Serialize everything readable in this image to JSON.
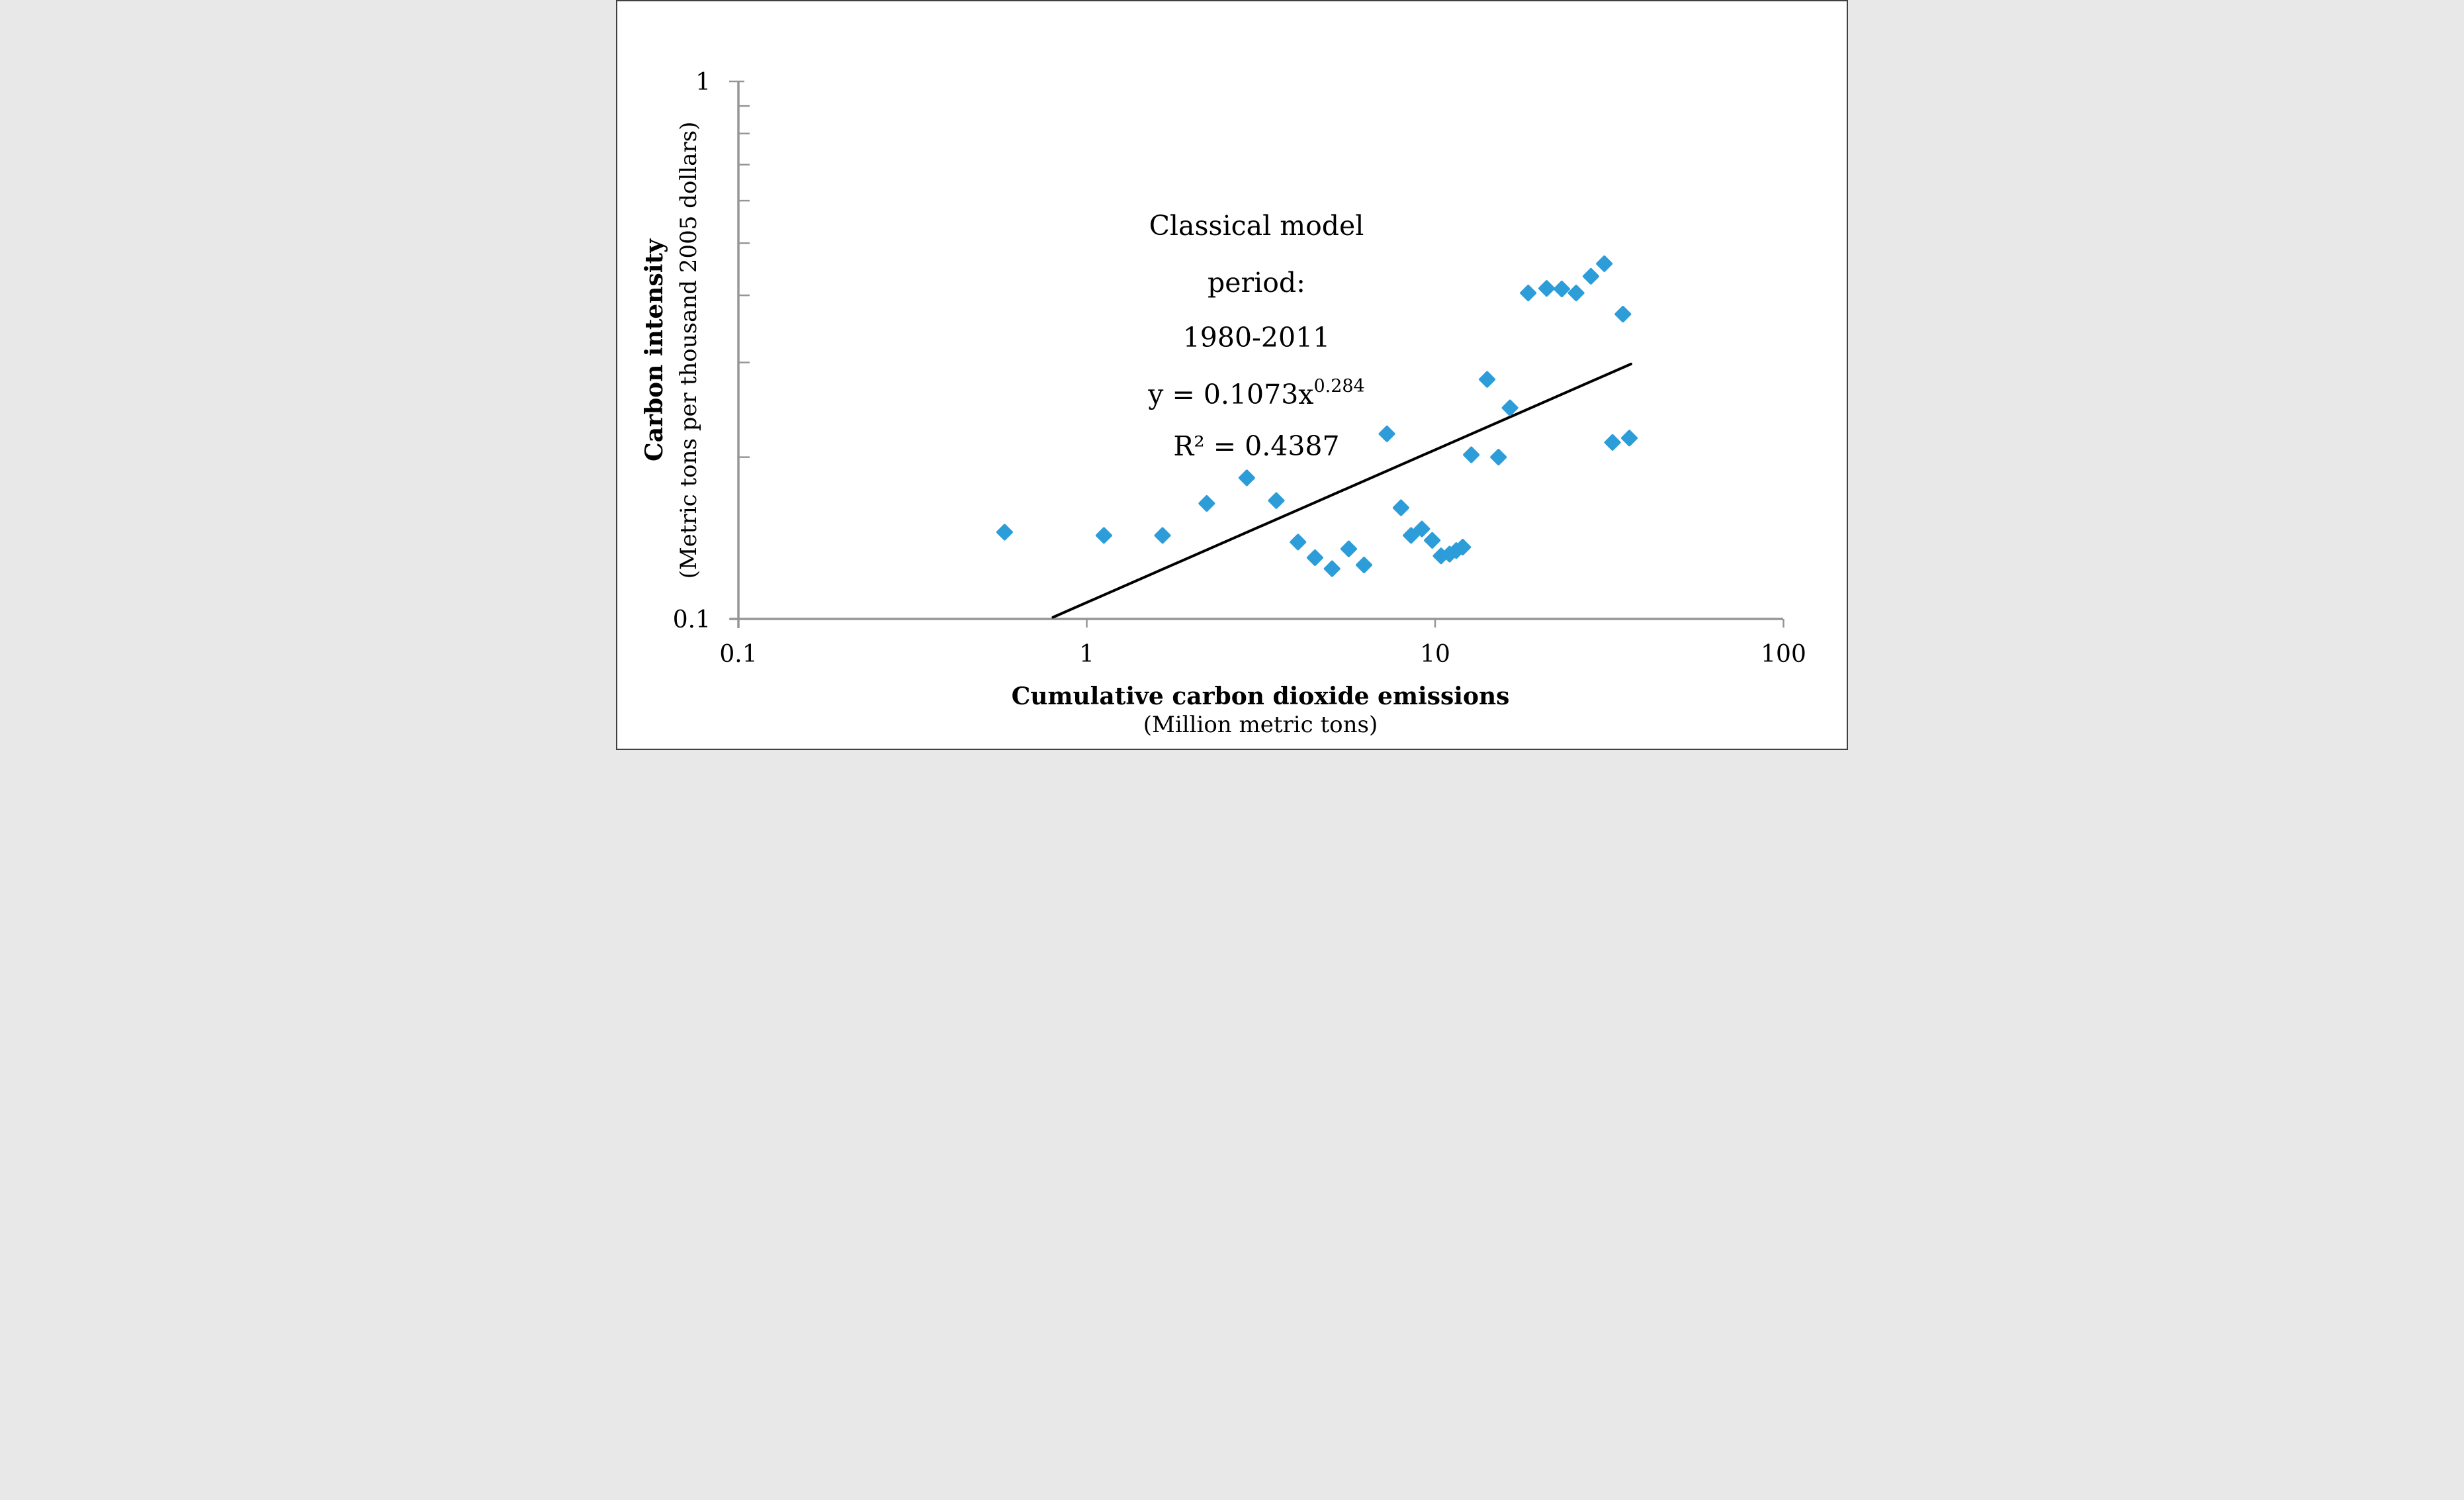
{
  "figure": {
    "background_color": "#ffffff",
    "border_color": "#404040"
  },
  "chart_data": {
    "type": "scatter",
    "title": "",
    "xlabel": "Cumulative carbon dioxide emissions",
    "xlabel_sub": "(Million metric tons)",
    "ylabel": "Carbon intensity",
    "ylabel_sub": "(Metric tons per thousand 2005 dollars)",
    "x_scale": "log",
    "y_scale": "log",
    "xlim": [
      0.1,
      100
    ],
    "ylim": [
      0.1,
      1
    ],
    "grid": false,
    "legend": false,
    "x_ticks": [
      0.1,
      1,
      10,
      100
    ],
    "x_tick_labels": [
      "0.1",
      "1",
      "10",
      "100"
    ],
    "y_ticks": [
      1,
      0.1
    ],
    "y_tick_labels": [
      "1",
      "0.1"
    ],
    "y_minor_ticks": [
      0.9,
      0.8,
      0.7,
      0.6,
      0.5,
      0.4,
      0.3,
      0.2
    ],
    "axis_color": "#969696",
    "marker": {
      "shape": "diamond",
      "color": "#2D9DD9"
    },
    "annotation": {
      "line1": "Classical model",
      "line2": "period:",
      "line3": "1980-2011",
      "line4_base": "y = 0.1073x",
      "line4_sup": "0.284",
      "line5": "R² = 0.4387"
    },
    "trendline": {
      "color": "#000000",
      "coefficient": 0.1073,
      "exponent": 0.284,
      "r_squared": 0.4387,
      "x_start": 0.8,
      "x_end": 36.5
    },
    "points": [
      [
        0.581,
        0.145
      ],
      [
        1.12,
        0.143
      ],
      [
        1.65,
        0.143
      ],
      [
        2.21,
        0.164
      ],
      [
        2.88,
        0.183
      ],
      [
        3.5,
        0.166
      ],
      [
        4.04,
        0.139
      ],
      [
        4.52,
        0.13
      ],
      [
        5.06,
        0.124
      ],
      [
        5.65,
        0.135
      ],
      [
        6.25,
        0.126
      ],
      [
        7.27,
        0.221
      ],
      [
        7.98,
        0.161
      ],
      [
        8.53,
        0.143
      ],
      [
        9.16,
        0.147
      ],
      [
        9.81,
        0.14
      ],
      [
        10.4,
        0.131
      ],
      [
        11.0,
        0.132
      ],
      [
        11.5,
        0.134
      ],
      [
        12.0,
        0.136
      ],
      [
        12.7,
        0.202
      ],
      [
        14.1,
        0.279
      ],
      [
        15.2,
        0.2
      ],
      [
        16.4,
        0.247
      ],
      [
        18.5,
        0.404
      ],
      [
        20.9,
        0.412
      ],
      [
        23.1,
        0.411
      ],
      [
        25.4,
        0.404
      ],
      [
        28.0,
        0.434
      ],
      [
        30.6,
        0.458
      ],
      [
        34.6,
        0.369
      ],
      [
        32.3,
        0.213
      ],
      [
        36.1,
        0.217
      ]
    ]
  }
}
